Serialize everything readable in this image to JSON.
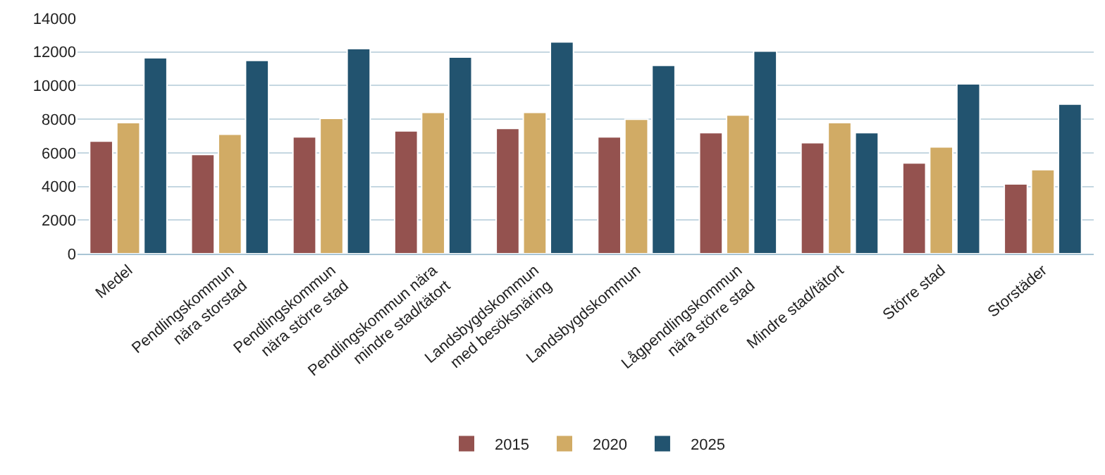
{
  "chart_data": {
    "type": "bar",
    "categories": [
      "Medel",
      "Pendlingskommun\nnära storstad",
      "Pendlingskommun\nnära större stad",
      "Pendlingskommun nära\nmindre stad/tätort",
      "Landsbygdskommun\nmed besöksnäring",
      "Landsbygdskommun",
      "Lågpendlingskommun\nnära större stad",
      "Mindre stad/tätort",
      "Större stad",
      "Storstäder"
    ],
    "series": [
      {
        "name": "2015",
        "color": "#94524f",
        "values": [
          6700,
          5900,
          6950,
          7300,
          7450,
          6950,
          7200,
          6600,
          5400,
          4150
        ]
      },
      {
        "name": "2020",
        "color": "#d1ab65",
        "values": [
          7800,
          7100,
          8050,
          8400,
          8400,
          8000,
          8250,
          7800,
          6350,
          5000
        ]
      },
      {
        "name": "2025",
        "color": "#22536f",
        "values": [
          11650,
          11500,
          12200,
          11700,
          12600,
          11200,
          12050,
          7200,
          10100,
          8900
        ]
      }
    ],
    "ylim": [
      0,
      14000
    ],
    "yticks": [
      0,
      2000,
      4000,
      6000,
      8000,
      10000,
      12000,
      14000
    ],
    "grid": "y",
    "legend": "bottom"
  }
}
